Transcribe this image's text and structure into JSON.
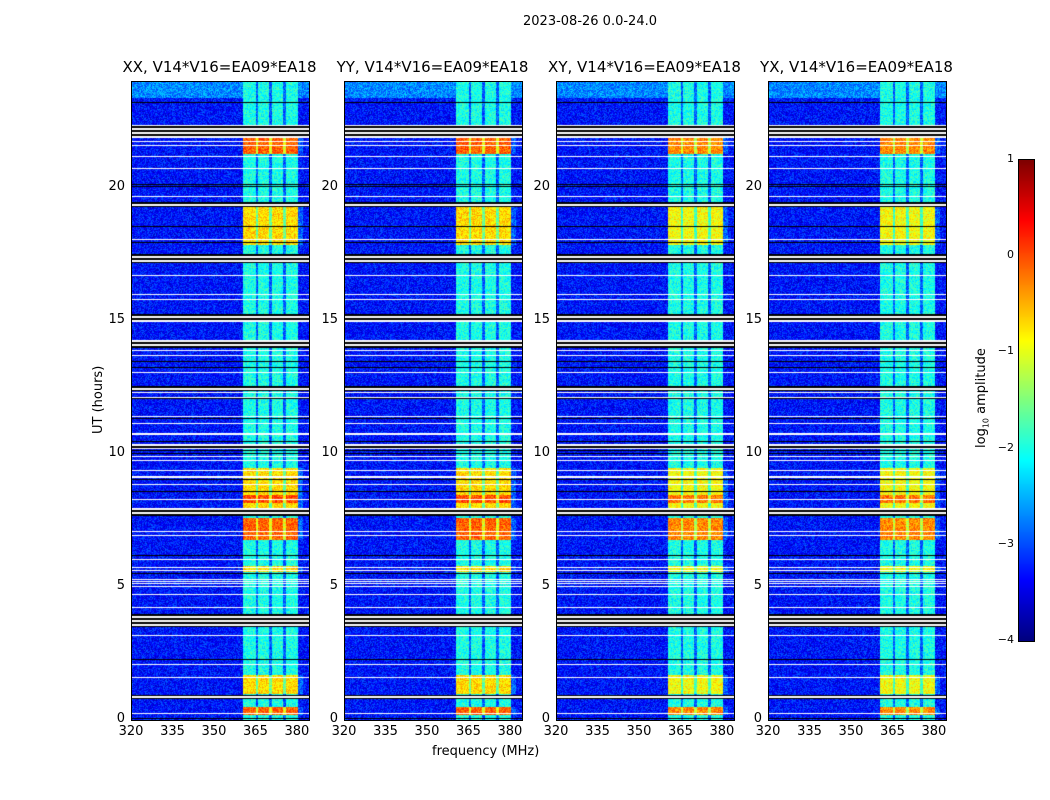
{
  "suptitle": "2023-08-26 0.0-24.0",
  "chart_data": {
    "type": "heatmap",
    "title": "2023-08-26 0.0-24.0",
    "xlabel": "frequency (MHz)",
    "ylabel": "UT (hours)",
    "xlim": [
      320,
      384
    ],
    "ylim": [
      0,
      24
    ],
    "xticks": [
      "320",
      "335",
      "350",
      "365",
      "380"
    ],
    "yticks": [
      "0",
      "5",
      "10",
      "15",
      "20"
    ],
    "panels": [
      {
        "title": "XX, V14*V16=EA09*EA18"
      },
      {
        "title": "YY, V14*V16=EA09*EA18"
      },
      {
        "title": "XY, V14*V16=EA09*EA18"
      },
      {
        "title": "YX, V14*V16=EA09*EA18"
      }
    ],
    "colorbar": {
      "label_prefix": "log",
      "label_sub": "10",
      "label_suffix": " amplitude",
      "range": [
        -4,
        1
      ],
      "ticks": [
        "1",
        "0",
        "−1",
        "−2",
        "−3",
        "−4"
      ],
      "colormap": "jet"
    },
    "background_level": -3.3,
    "bright_band_mhz": [
      360,
      380
    ],
    "band_level": -2.0,
    "high_amplitude_intervals_hours": [
      [
        0.2,
        0.5
      ],
      [
        1.0,
        1.7
      ],
      [
        5.6,
        5.8
      ],
      [
        6.8,
        7.6
      ],
      [
        8.0,
        9.5
      ],
      [
        17.9,
        19.3
      ],
      [
        21.3,
        21.9
      ]
    ]
  }
}
